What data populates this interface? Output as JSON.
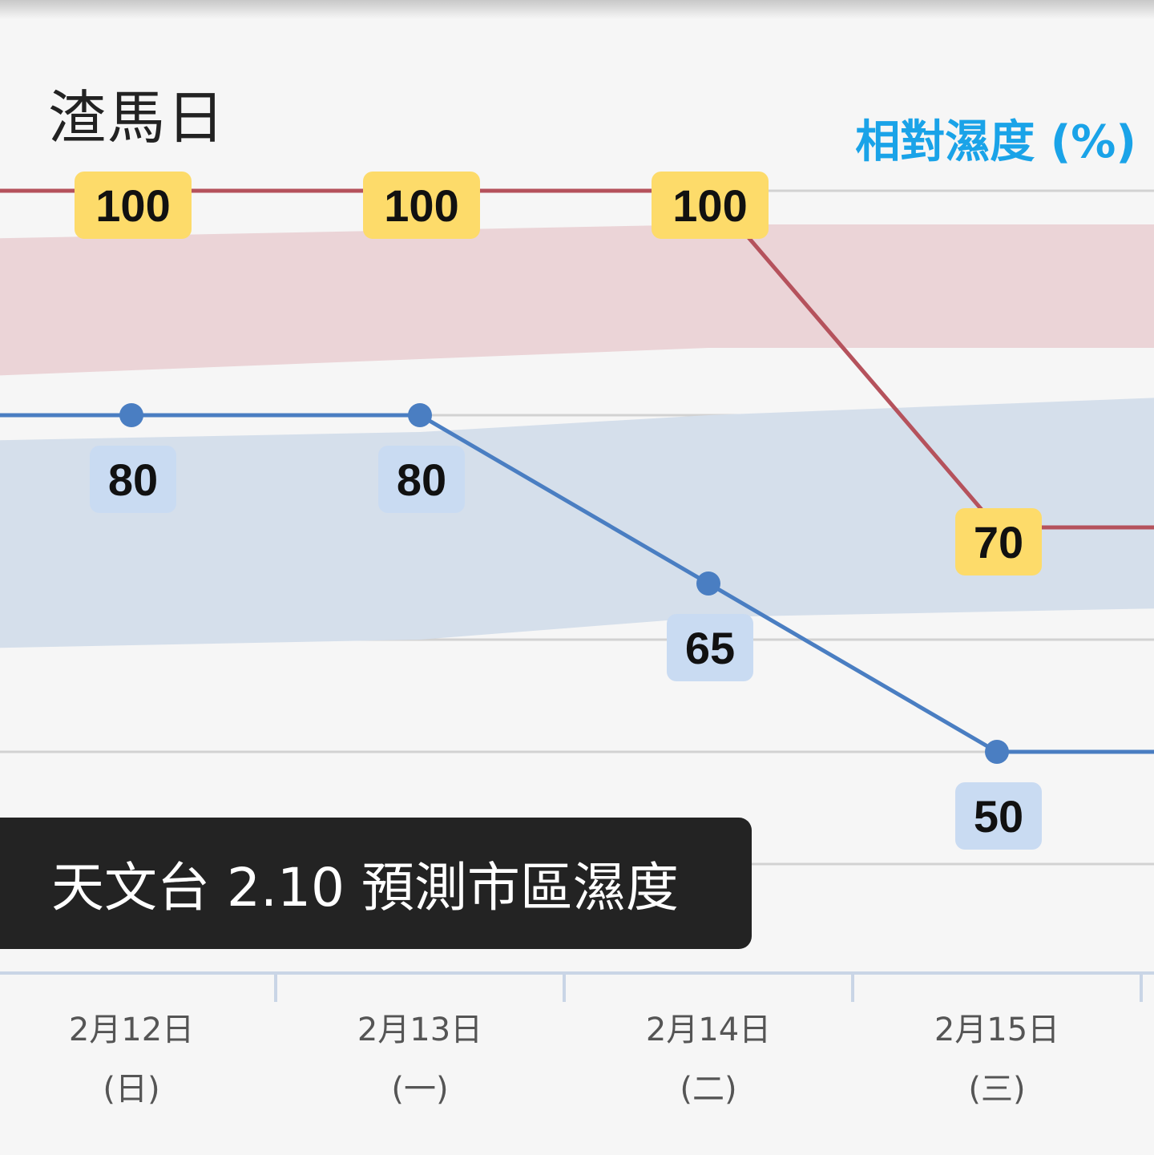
{
  "header": {
    "place_name": "渣馬日",
    "axis_title": "相對濕度 (%)"
  },
  "banner": {
    "text": "天文台 2.10 預測市區濕度"
  },
  "dates": [
    {
      "date": "2月12日",
      "weekday": "(日)"
    },
    {
      "date": "2月13日",
      "weekday": "(一)"
    },
    {
      "date": "2月14日",
      "weekday": "(二)"
    },
    {
      "date": "2月15日",
      "weekday": "(三)"
    }
  ],
  "colors": {
    "max_line": "#b5525c",
    "min_line": "#4a7ec2",
    "max_band": "#ebd4d7",
    "min_band": "#d5dfeb",
    "max_tag": "#fddb6a",
    "min_tag": "#c9dbf2",
    "title_accent": "#1aa3e8",
    "banner_bg": "#232323"
  },
  "chart_data": {
    "type": "line",
    "categories": [
      "2月12日",
      "2月13日",
      "2月14日",
      "2月15日"
    ],
    "ylim": [
      40,
      102
    ],
    "grid": "horizontal",
    "series": [
      {
        "key": "max",
        "values": [
          100,
          100,
          100,
          70
        ],
        "marker": "square"
      },
      {
        "key": "min",
        "values": [
          80,
          80,
          65,
          50
        ],
        "marker": "circle"
      }
    ],
    "normal_bands": [
      {
        "key": "max",
        "upper": [
          96,
          96.5,
          97,
          97
        ],
        "lower": [
          84,
          85,
          86,
          86
        ]
      },
      {
        "key": "min",
        "upper": [
          78,
          78.5,
          80,
          81
        ],
        "lower": [
          59.5,
          60,
          62,
          62.5
        ]
      }
    ]
  }
}
